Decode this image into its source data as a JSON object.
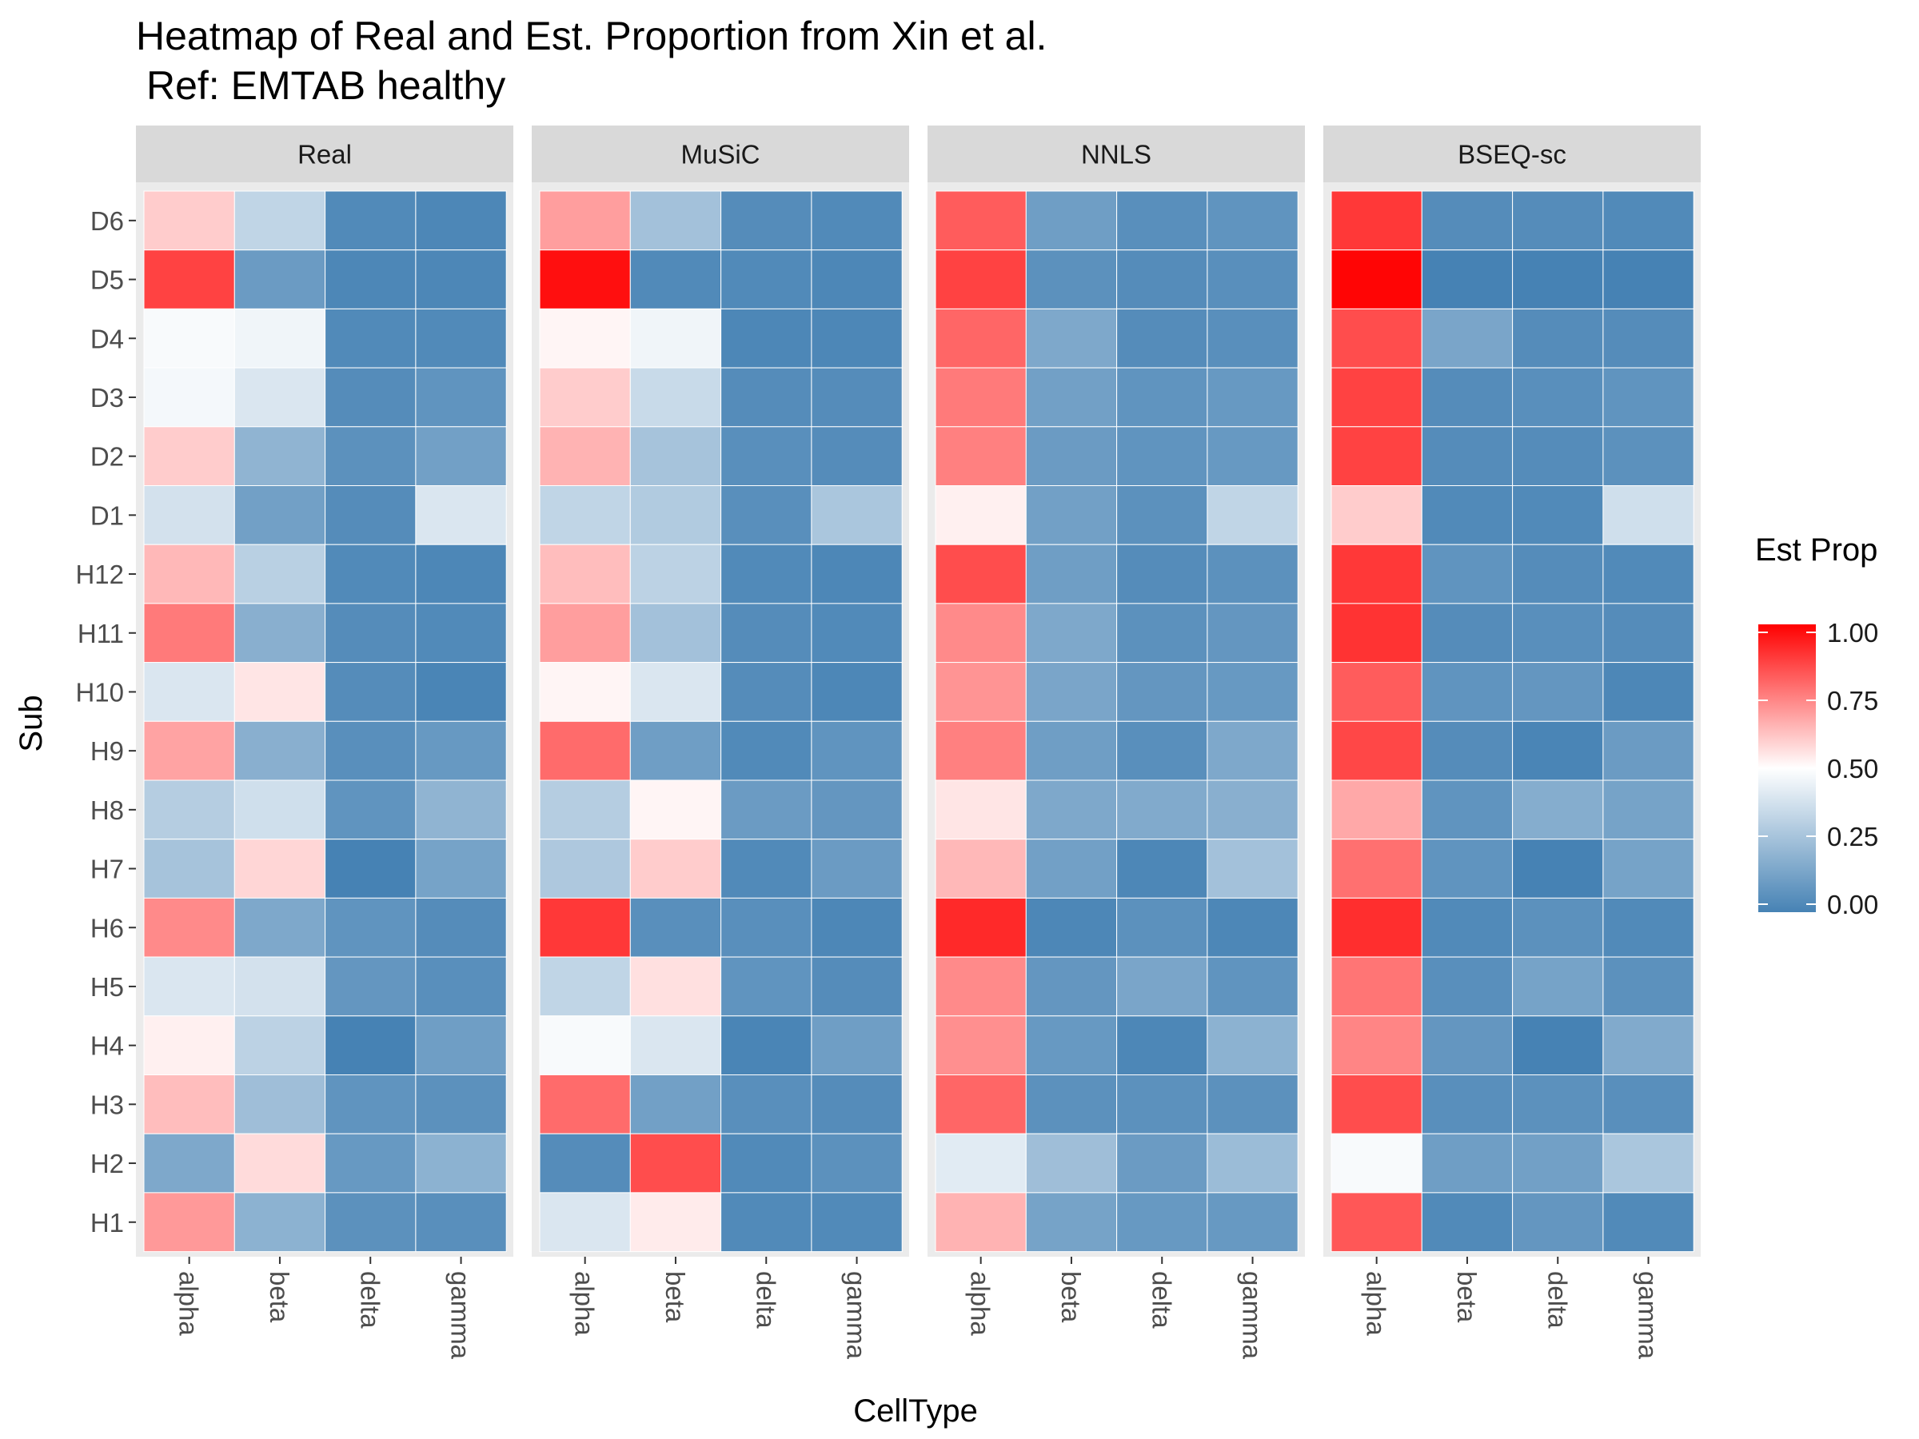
{
  "chart_data": {
    "type": "heatmap",
    "title": "Heatmap of Real and Est. Proportion from Xin et al.",
    "subtitle": "Ref: EMTAB healthy",
    "xlabel": "CellType",
    "ylabel": "Sub",
    "facets": [
      "Real",
      "MuSiC",
      "NNLS",
      "BSEQ-sc"
    ],
    "categories": [
      "alpha",
      "beta",
      "delta",
      "gamma"
    ],
    "rows": [
      "D6",
      "D5",
      "D4",
      "D3",
      "D2",
      "D1",
      "H12",
      "H11",
      "H10",
      "H9",
      "H8",
      "H7",
      "H6",
      "H5",
      "H4",
      "H3",
      "H2",
      "H1"
    ],
    "values": {
      "Real": [
        [
          0.6,
          0.33,
          0.03,
          0.02
        ],
        [
          0.87,
          0.1,
          0.02,
          0.02
        ],
        [
          0.48,
          0.46,
          0.03,
          0.03
        ],
        [
          0.47,
          0.4,
          0.04,
          0.07
        ],
        [
          0.6,
          0.2,
          0.06,
          0.12
        ],
        [
          0.38,
          0.12,
          0.04,
          0.4
        ],
        [
          0.64,
          0.31,
          0.03,
          0.02
        ],
        [
          0.76,
          0.18,
          0.04,
          0.03
        ],
        [
          0.4,
          0.55,
          0.04,
          0.01
        ],
        [
          0.68,
          0.18,
          0.05,
          0.09
        ],
        [
          0.3,
          0.37,
          0.07,
          0.2
        ],
        [
          0.26,
          0.58,
          0.0,
          0.13
        ],
        [
          0.73,
          0.15,
          0.07,
          0.04
        ],
        [
          0.4,
          0.38,
          0.08,
          0.05
        ],
        [
          0.53,
          0.32,
          0.0,
          0.11
        ],
        [
          0.63,
          0.24,
          0.07,
          0.06
        ],
        [
          0.15,
          0.57,
          0.09,
          0.19
        ],
        [
          0.7,
          0.19,
          0.06,
          0.05
        ]
      ],
      "MuSiC": [
        [
          0.69,
          0.25,
          0.04,
          0.03
        ],
        [
          0.97,
          0.03,
          0.03,
          0.02
        ],
        [
          0.52,
          0.46,
          0.02,
          0.02
        ],
        [
          0.6,
          0.35,
          0.04,
          0.04
        ],
        [
          0.65,
          0.26,
          0.05,
          0.04
        ],
        [
          0.33,
          0.29,
          0.05,
          0.27
        ],
        [
          0.63,
          0.32,
          0.03,
          0.02
        ],
        [
          0.69,
          0.25,
          0.04,
          0.03
        ],
        [
          0.52,
          0.4,
          0.04,
          0.02
        ],
        [
          0.79,
          0.11,
          0.03,
          0.07
        ],
        [
          0.3,
          0.52,
          0.1,
          0.08
        ],
        [
          0.28,
          0.6,
          0.03,
          0.1
        ],
        [
          0.89,
          0.05,
          0.05,
          0.02
        ],
        [
          0.33,
          0.56,
          0.07,
          0.04
        ],
        [
          0.48,
          0.4,
          0.01,
          0.11
        ],
        [
          0.79,
          0.12,
          0.05,
          0.04
        ],
        [
          0.04,
          0.85,
          0.03,
          0.06
        ],
        [
          0.4,
          0.54,
          0.03,
          0.03
        ]
      ],
      "NNLS": [
        [
          0.82,
          0.11,
          0.05,
          0.07
        ],
        [
          0.87,
          0.06,
          0.04,
          0.05
        ],
        [
          0.8,
          0.15,
          0.04,
          0.05
        ],
        [
          0.76,
          0.12,
          0.07,
          0.09
        ],
        [
          0.75,
          0.1,
          0.07,
          0.09
        ],
        [
          0.53,
          0.12,
          0.06,
          0.33
        ],
        [
          0.85,
          0.11,
          0.04,
          0.06
        ],
        [
          0.73,
          0.15,
          0.06,
          0.08
        ],
        [
          0.71,
          0.14,
          0.08,
          0.09
        ],
        [
          0.75,
          0.11,
          0.05,
          0.15
        ],
        [
          0.55,
          0.15,
          0.16,
          0.18
        ],
        [
          0.64,
          0.12,
          0.02,
          0.25
        ],
        [
          0.92,
          0.02,
          0.06,
          0.02
        ],
        [
          0.73,
          0.08,
          0.14,
          0.07
        ],
        [
          0.72,
          0.09,
          0.02,
          0.19
        ],
        [
          0.8,
          0.06,
          0.06,
          0.06
        ],
        [
          0.42,
          0.24,
          0.1,
          0.23
        ],
        [
          0.65,
          0.13,
          0.09,
          0.09
        ]
      ],
      "BSEQ-sc": [
        [
          0.89,
          0.04,
          0.04,
          0.03
        ],
        [
          0.99,
          0.0,
          0.0,
          0.0
        ],
        [
          0.85,
          0.14,
          0.04,
          0.04
        ],
        [
          0.87,
          0.04,
          0.05,
          0.07
        ],
        [
          0.87,
          0.04,
          0.04,
          0.06
        ],
        [
          0.6,
          0.03,
          0.03,
          0.37
        ],
        [
          0.89,
          0.07,
          0.04,
          0.03
        ],
        [
          0.9,
          0.04,
          0.05,
          0.04
        ],
        [
          0.82,
          0.07,
          0.08,
          0.02
        ],
        [
          0.86,
          0.04,
          0.01,
          0.1
        ],
        [
          0.67,
          0.07,
          0.17,
          0.13
        ],
        [
          0.78,
          0.07,
          0.0,
          0.13
        ],
        [
          0.91,
          0.03,
          0.06,
          0.03
        ],
        [
          0.77,
          0.05,
          0.13,
          0.06
        ],
        [
          0.74,
          0.08,
          0.0,
          0.16
        ],
        [
          0.85,
          0.05,
          0.06,
          0.05
        ],
        [
          0.48,
          0.11,
          0.12,
          0.27
        ],
        [
          0.83,
          0.03,
          0.08,
          0.03
        ]
      ]
    },
    "legend": {
      "title": "Est Prop",
      "placement": "right",
      "range": [
        0,
        1
      ],
      "ticks": [
        0.0,
        0.25,
        0.5,
        0.75,
        1.0
      ],
      "tick_labels": [
        "0.00",
        "0.25",
        "0.50",
        "0.75",
        "1.00"
      ]
    },
    "colors": {
      "low": "#4682b4",
      "mid": "#ffffff",
      "high": "#ff0000",
      "panel_background": "#ebebeb",
      "strip_background": "#d9d9d9",
      "grid": "#ffffff"
    }
  }
}
